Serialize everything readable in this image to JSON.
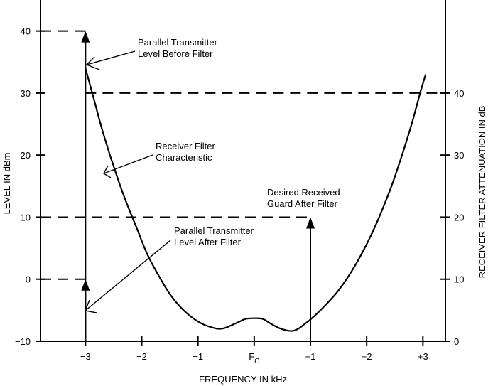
{
  "chart_data": {
    "type": "line",
    "xlabel": "FREQUENCY IN kHz",
    "ylabel_left": "LEVEL IN dBm",
    "ylabel_right": "RECEIVER FILTER ATTENUATION IN dB",
    "xlim": [
      -3.8,
      3.4
    ],
    "ylim_left": [
      -10,
      45
    ],
    "x_ticks": [
      {
        "value": -3,
        "label": "−3"
      },
      {
        "value": -2,
        "label": "−2"
      },
      {
        "value": -1,
        "label": "−1"
      },
      {
        "value": 0,
        "label": "F",
        "sub": "C"
      },
      {
        "value": 1,
        "label": "+1"
      },
      {
        "value": 2,
        "label": "+2"
      },
      {
        "value": 3,
        "label": "+3"
      }
    ],
    "y_ticks_left": [
      {
        "value": -10,
        "label": "−10"
      },
      {
        "value": 0,
        "label": "0"
      },
      {
        "value": 10,
        "label": "10"
      },
      {
        "value": 20,
        "label": "20"
      },
      {
        "value": 30,
        "label": "30"
      },
      {
        "value": 40,
        "label": "40"
      }
    ],
    "y_ticks_right": [
      {
        "value": 0,
        "label": "0",
        "at_level": -10
      },
      {
        "value": 10,
        "label": "10",
        "at_level": 0
      },
      {
        "value": 20,
        "label": "20",
        "at_level": 10
      },
      {
        "value": 30,
        "label": "30",
        "at_level": 20
      },
      {
        "value": 40,
        "label": "40",
        "at_level": 30
      }
    ],
    "series": [
      {
        "x": [
          -3.0,
          -2.85,
          -2.7,
          -2.5,
          -2.3,
          -2.1,
          -1.9,
          -1.7,
          -1.5,
          -1.3,
          -1.1,
          -0.9,
          -0.7,
          -0.6,
          -0.5,
          -0.3,
          -0.15,
          0.0,
          0.15,
          0.3,
          0.45,
          0.6,
          0.7,
          0.8,
          0.9,
          1.0,
          1.2,
          1.5,
          1.8,
          2.1,
          2.4,
          2.6,
          2.8,
          2.95,
          3.05
        ],
        "y": [
          34.0,
          29.0,
          24.0,
          18.2,
          13.0,
          8.5,
          4.0,
          0.6,
          -2.4,
          -4.6,
          -6.2,
          -7.3,
          -7.9,
          -8.0,
          -7.8,
          -7.0,
          -6.4,
          -6.3,
          -6.4,
          -7.2,
          -7.9,
          -8.3,
          -8.3,
          -7.9,
          -7.2,
          -6.5,
          -4.8,
          -1.8,
          2.3,
          7.5,
          14.0,
          19.2,
          25.0,
          30.0,
          33.0
        ]
      }
    ],
    "dashed_levels": [
      {
        "y": 40,
        "x_from": -3.8,
        "x_to": -3.0
      },
      {
        "y": 30,
        "x_from": -3.0,
        "x_to": 3.4
      },
      {
        "y": 10,
        "x_from": -3.8,
        "x_to": 1.0
      },
      {
        "y": 0,
        "x_from": -3.8,
        "x_to": -3.0
      }
    ],
    "level_arrows": [
      {
        "x": -3.0,
        "y_from": -10,
        "y_to": 40
      },
      {
        "x": -3.0,
        "y_from": -10,
        "y_to": 0
      },
      {
        "x": 1.0,
        "y_from": -10,
        "y_to": 10
      }
    ],
    "annotations": [
      {
        "lines": [
          "Parallel Transmitter",
          "Level Before Filter"
        ],
        "points_to": {
          "x": -3.0,
          "y": 34
        }
      },
      {
        "lines": [
          "Receiver Filter",
          "Characteristic"
        ],
        "points_to": {
          "x": -2.7,
          "y": 27
        }
      },
      {
        "lines": [
          "Desired Received",
          "Guard After Filter"
        ]
      },
      {
        "lines": [
          "Parallel Transmitter",
          "Level After Filter"
        ],
        "points_to": {
          "x": -3.0,
          "y": -5.5
        }
      }
    ]
  }
}
